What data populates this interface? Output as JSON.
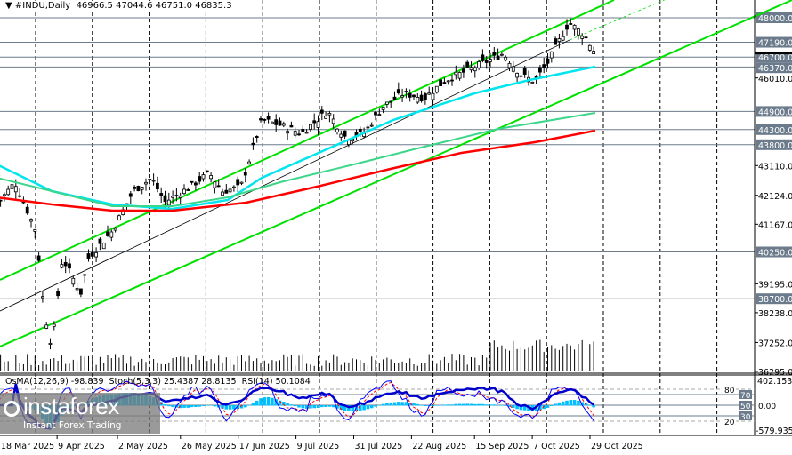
{
  "header": {
    "symbol": "#INDU,Daily",
    "open": "46966.5",
    "high": "47044.6",
    "low": "46751.0",
    "close": "46835.3"
  },
  "indicator_header": {
    "osma": "OsMA(12,26,9) -98.839",
    "stoch": "Stoch(5,3,3) 25.4387 28.8135",
    "rsi": "RSI(14) 50.1084"
  },
  "logo": {
    "name": "instaforex",
    "tagline": "Instant Forex Trading"
  },
  "colors": {
    "channel": "#00e000",
    "ma_fast": "#00e5ee",
    "ma_mid": "#3cd68a",
    "ma_slow": "#ff0000",
    "level_tag": "#6b7b8c",
    "osma": "#00bfff",
    "stoch_main": "#0000ff",
    "stoch_signal": "#ff0000",
    "rsi": "#0000cc"
  },
  "chart_data": {
    "type": "candlestick",
    "symbol": "#INDU",
    "timeframe": "Daily",
    "ylim": [
      36295,
      48300
    ],
    "grid": true,
    "price_ticks": [
      "46010.0",
      "43110.0",
      "42124.0",
      "41167.0",
      "39195.0",
      "38238.0",
      "37252.0",
      "36295.0"
    ],
    "level_tags": [
      "48000.0",
      "47190.0",
      "46700.0",
      "46370.0",
      "44900.0",
      "44300.0",
      "43800.0",
      "40250.0",
      "38700.0"
    ],
    "hidden_ticks": [
      "44067.0"
    ],
    "current_price": 46835.3,
    "date_labels": [
      "18 Mar 2025",
      "9 Apr 2025",
      "2 May 2025",
      "26 May 2025",
      "17 Jun 2025",
      "9 Jul 2025",
      "31 Jul 2025",
      "22 Aug 2025",
      "15 Sep 2025",
      "7 Oct 2025",
      "29 Oct 2025"
    ],
    "close_points": [
      [
        "2025-03-17",
        41824
      ],
      [
        "2025-03-24",
        42560
      ],
      [
        "2025-04-01",
        40940
      ],
      [
        "2025-04-04",
        38300
      ],
      [
        "2025-04-07",
        37100
      ],
      [
        "2025-04-11",
        40060
      ],
      [
        "2025-04-18",
        38880
      ],
      [
        "2025-04-21",
        40060
      ],
      [
        "2025-04-30",
        40940
      ],
      [
        "2025-05-08",
        42260
      ],
      [
        "2025-05-15",
        42700
      ],
      [
        "2025-05-20",
        41900
      ],
      [
        "2025-05-27",
        42260
      ],
      [
        "2025-06-06",
        42860
      ],
      [
        "2025-06-11",
        42260
      ],
      [
        "2025-06-18",
        42400
      ],
      [
        "2025-06-26",
        44620
      ],
      [
        "2025-07-03",
        44450
      ],
      [
        "2025-07-11",
        44180
      ],
      [
        "2025-07-21",
        44910
      ],
      [
        "2025-07-28",
        44030
      ],
      [
        "2025-08-04",
        44180
      ],
      [
        "2025-08-11",
        45060
      ],
      [
        "2025-08-19",
        45500
      ],
      [
        "2025-08-27",
        45350
      ],
      [
        "2025-09-04",
        45940
      ],
      [
        "2025-09-12",
        46240
      ],
      [
        "2025-09-26",
        46820
      ],
      [
        "2025-10-03",
        46090
      ],
      [
        "2025-10-08",
        45900
      ],
      [
        "2025-10-13",
        46530
      ],
      [
        "2025-10-21",
        47850
      ],
      [
        "2025-10-27",
        47410
      ],
      [
        "2025-10-31",
        46835
      ]
    ],
    "ma_fast": [
      [
        "2025-03-17",
        43147
      ],
      [
        "2025-04-07",
        42265
      ],
      [
        "2025-04-30",
        41824
      ],
      [
        "2025-05-23",
        41676
      ],
      [
        "2025-06-13",
        41970
      ],
      [
        "2025-06-26",
        42706
      ],
      [
        "2025-07-23",
        43735
      ],
      [
        "2025-08-15",
        44618
      ],
      [
        "2025-09-15",
        45500
      ],
      [
        "2025-10-06",
        45941
      ],
      [
        "2025-10-31",
        46382
      ]
    ],
    "ma_mid": [
      [
        "2025-03-17",
        42706
      ],
      [
        "2025-04-07",
        42265
      ],
      [
        "2025-04-30",
        41765
      ],
      [
        "2025-05-23",
        41765
      ],
      [
        "2025-06-13",
        42059
      ],
      [
        "2025-07-03",
        42559
      ],
      [
        "2025-07-31",
        43147
      ],
      [
        "2025-08-27",
        43735
      ],
      [
        "2025-09-24",
        44324
      ],
      [
        "2025-10-31",
        44853
      ]
    ],
    "ma_slow": [
      [
        "2025-03-17",
        42059
      ],
      [
        "2025-04-07",
        41824
      ],
      [
        "2025-04-30",
        41618
      ],
      [
        "2025-05-23",
        41618
      ],
      [
        "2025-06-20",
        41882
      ],
      [
        "2025-07-17",
        42412
      ],
      [
        "2025-08-14",
        43000
      ],
      [
        "2025-09-10",
        43529
      ],
      [
        "2025-10-08",
        43882
      ],
      [
        "2025-10-31",
        44265
      ]
    ],
    "oscillator": {
      "top": "402.153",
      "bottom": "-579.935",
      "levels": [
        "80",
        "70",
        "50",
        "30",
        "20"
      ],
      "mid_label": "0.00"
    }
  }
}
